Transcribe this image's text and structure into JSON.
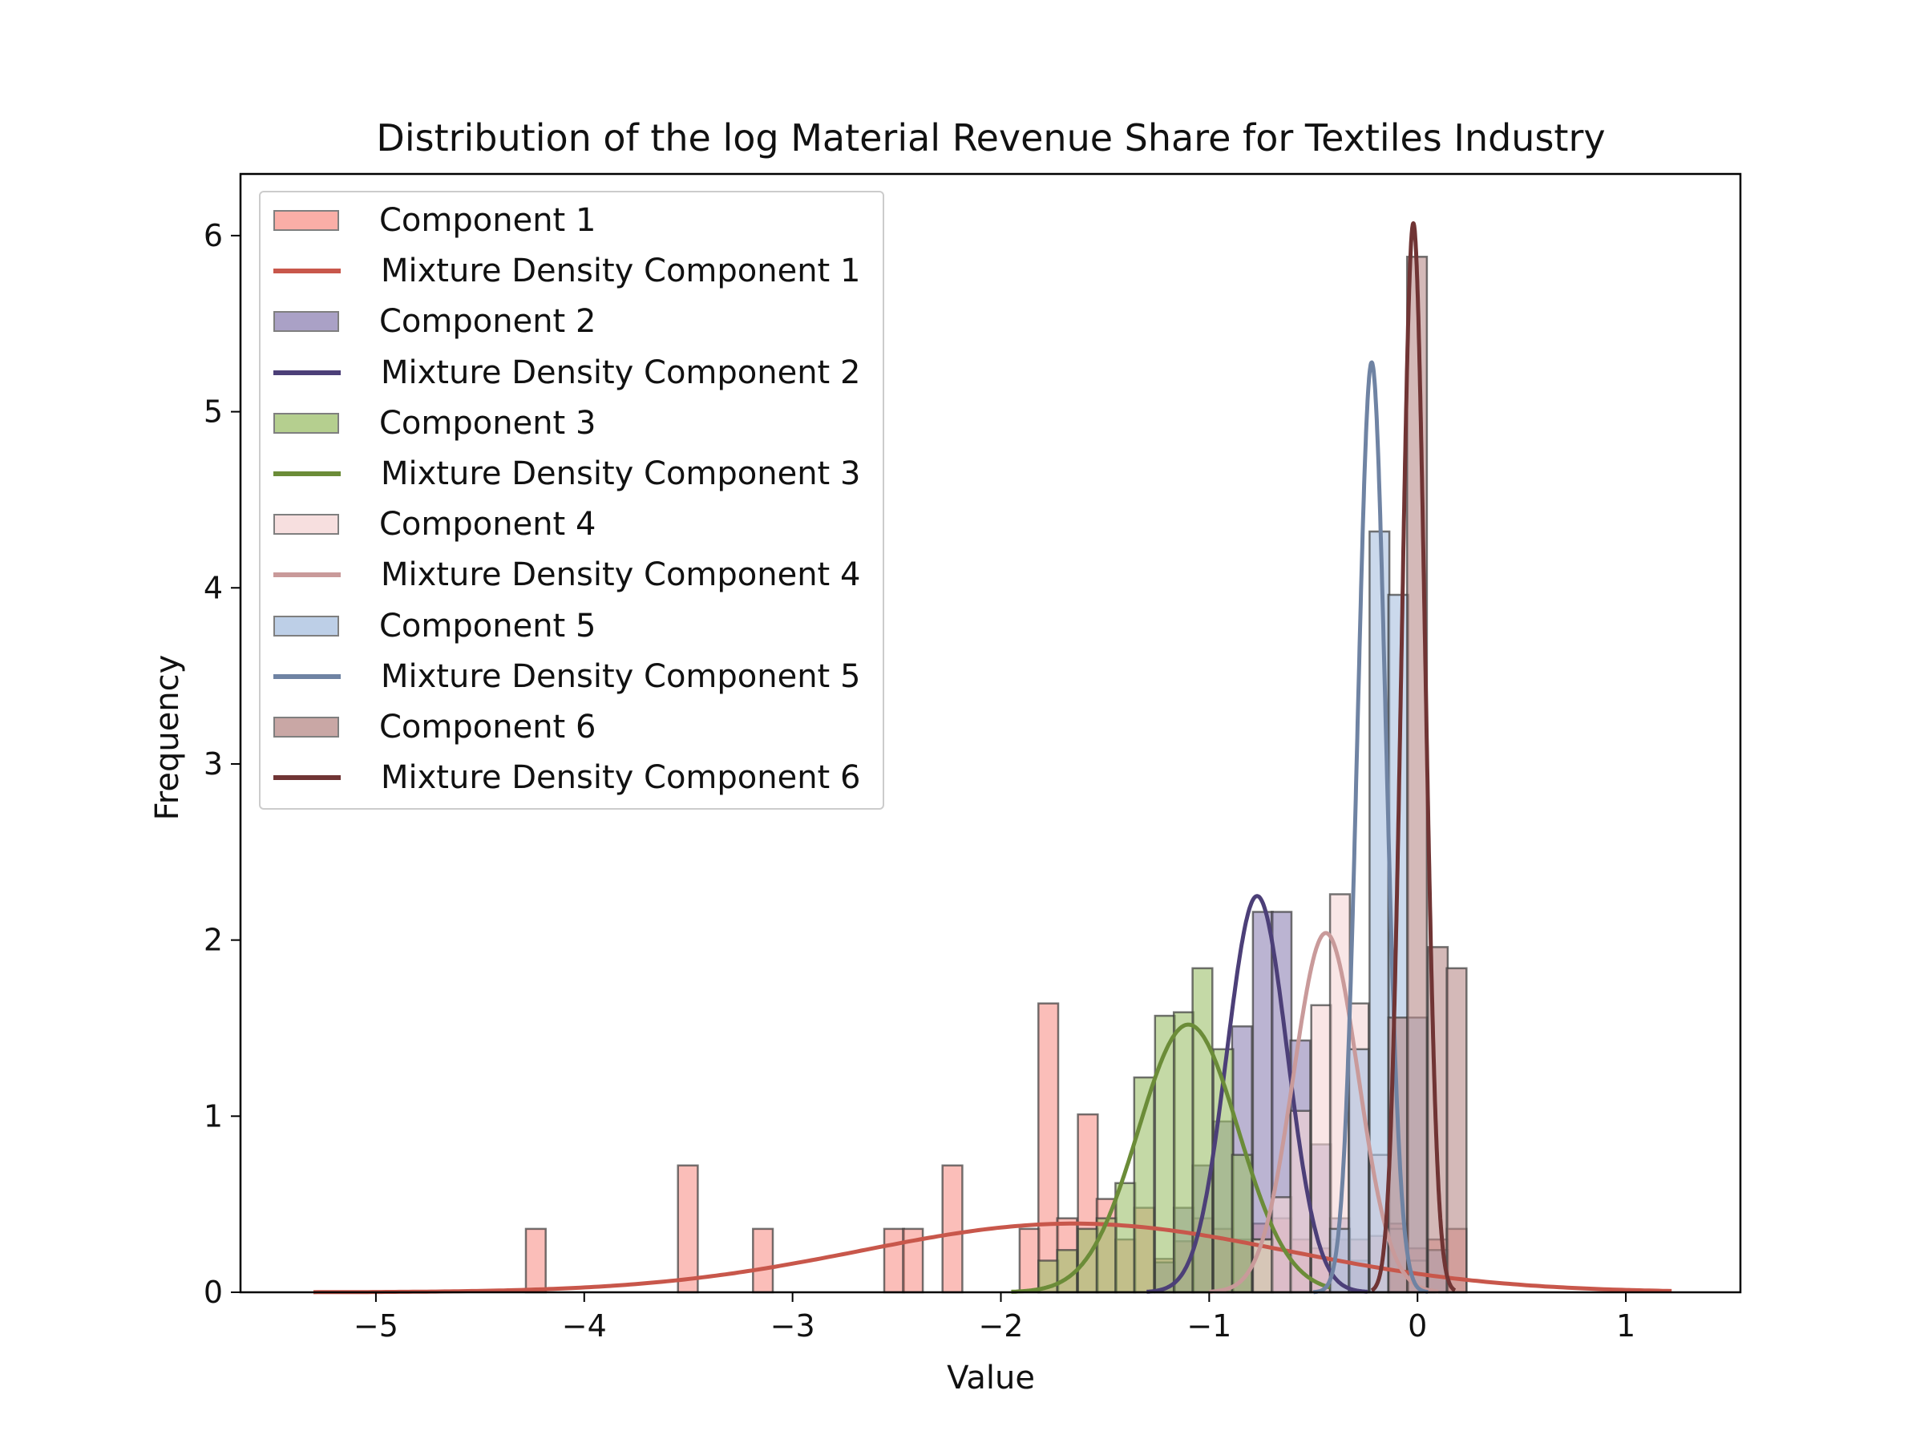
{
  "chart_data": {
    "type": "histogram_with_density",
    "title": "Distribution of the log Material Revenue Share for Textiles Industry",
    "xlabel": "Value",
    "ylabel": "Frequency",
    "xlim": [
      -5.65,
      1.55
    ],
    "ylim": [
      0,
      6.35
    ],
    "xticks": [
      -5,
      -4,
      -3,
      -2,
      -1,
      0,
      1
    ],
    "xtick_labels": [
      "−5",
      "−4",
      "−3",
      "−2",
      "−1",
      "0",
      "1"
    ],
    "yticks": [
      0,
      1,
      2,
      3,
      4,
      5,
      6
    ],
    "ytick_labels": [
      "0",
      "1",
      "2",
      "3",
      "4",
      "5",
      "6"
    ],
    "legend_position": "top-left",
    "grid": false,
    "components": [
      {
        "hist_label": "Component 1",
        "line_label": "Mixture Density Component 1",
        "fill_color": "#f9938a",
        "line_color": "#c8574b",
        "bin_width": 0.095,
        "bins": [
          [
            -4.28,
            0.36
          ],
          [
            -3.55,
            0.72
          ],
          [
            -3.19,
            0.36
          ],
          [
            -2.56,
            0.36
          ],
          [
            -2.47,
            0.36
          ],
          [
            -2.28,
            0.72
          ],
          [
            -1.91,
            0.36
          ],
          [
            -1.82,
            1.64
          ],
          [
            -1.73,
            0.42
          ],
          [
            -1.63,
            1.01
          ],
          [
            -1.54,
            0.53
          ],
          [
            -1.45,
            0.3
          ],
          [
            -1.36,
            0.48
          ],
          [
            -1.26,
            0.19
          ],
          [
            -1.17,
            0.29
          ],
          [
            -1.08,
            0.42
          ],
          [
            -0.98,
            0.36
          ],
          [
            -0.89,
            0.3
          ],
          [
            -0.79,
            0.39
          ],
          [
            -0.7,
            0.42
          ],
          [
            -0.61,
            0.3
          ],
          [
            -0.51,
            0.25
          ],
          [
            -0.42,
            0.3
          ],
          [
            -0.33,
            0.3
          ],
          [
            -0.23,
            0.32
          ],
          [
            -0.14,
            0.39
          ],
          [
            -0.05,
            0.25
          ],
          [
            0.05,
            0.3
          ],
          [
            0.14,
            0.36
          ]
        ],
        "density": {
          "mean": -1.65,
          "sd": 1.02,
          "peak": 0.39,
          "x_range": [
            -5.3,
            1.22
          ]
        }
      },
      {
        "hist_label": "Component 2",
        "line_label": "Mixture Density Component 2",
        "fill_color": "#8e82b4",
        "line_color": "#4c3f78",
        "bin_width": 0.095,
        "bins": [
          [
            -1.26,
            0.17
          ],
          [
            -1.17,
            0.48
          ],
          [
            -1.08,
            0.72
          ],
          [
            -0.98,
            0.97
          ],
          [
            -0.89,
            1.51
          ],
          [
            -0.79,
            2.16
          ],
          [
            -0.7,
            2.16
          ],
          [
            -0.61,
            1.43
          ],
          [
            -0.51,
            0.84
          ],
          [
            -0.42,
            0.42
          ],
          [
            -0.33,
            0.18
          ]
        ],
        "density": {
          "mean": -0.77,
          "sd": 0.145,
          "peak": 2.25,
          "x_range": [
            -1.3,
            -0.24
          ]
        }
      },
      {
        "hist_label": "Component 3",
        "line_label": "Mixture Density Component 3",
        "fill_color": "#9dbf6a",
        "line_color": "#6b8c38",
        "bin_width": 0.095,
        "bins": [
          [
            -1.82,
            0.18
          ],
          [
            -1.73,
            0.24
          ],
          [
            -1.63,
            0.36
          ],
          [
            -1.54,
            0.42
          ],
          [
            -1.45,
            0.62
          ],
          [
            -1.36,
            1.22
          ],
          [
            -1.26,
            1.57
          ],
          [
            -1.17,
            1.59
          ],
          [
            -1.08,
            1.84
          ],
          [
            -0.98,
            1.38
          ],
          [
            -0.89,
            0.78
          ],
          [
            -0.79,
            0.3
          ]
        ],
        "density": {
          "mean": -1.1,
          "sd": 0.24,
          "peak": 1.52,
          "x_range": [
            -1.95,
            -0.42
          ]
        }
      },
      {
        "hist_label": "Component 4",
        "line_label": "Mixture Density Component 4",
        "fill_color": "#f5d5d5",
        "line_color": "#c99a9a",
        "bin_width": 0.095,
        "bins": [
          [
            -0.79,
            0.3
          ],
          [
            -0.7,
            0.54
          ],
          [
            -0.61,
            1.03
          ],
          [
            -0.51,
            1.63
          ],
          [
            -0.42,
            2.26
          ],
          [
            -0.33,
            1.64
          ],
          [
            -0.23,
            0.78
          ],
          [
            -0.14,
            0.36
          ],
          [
            -0.05,
            0.18
          ]
        ],
        "density": {
          "mean": -0.44,
          "sd": 0.155,
          "peak": 2.04,
          "x_range": [
            -1.0,
            0.1
          ]
        }
      },
      {
        "hist_label": "Component 5",
        "line_label": "Mixture Density Component 5",
        "fill_color": "#a8bfe0",
        "line_color": "#6f83a3",
        "bin_width": 0.095,
        "bins": [
          [
            -0.42,
            0.36
          ],
          [
            -0.33,
            1.38
          ],
          [
            -0.23,
            4.32
          ],
          [
            -0.14,
            3.96
          ],
          [
            -0.05,
            1.56
          ],
          [
            0.05,
            0.24
          ]
        ],
        "density": {
          "mean": -0.22,
          "sd": 0.068,
          "peak": 5.28,
          "x_range": [
            -0.5,
            0.05
          ]
        }
      },
      {
        "hist_label": "Component 6",
        "line_label": "Mixture Density Component 6",
        "fill_color": "#b88a88",
        "line_color": "#703434",
        "bin_width": 0.095,
        "bins": [
          [
            -0.14,
            1.56
          ],
          [
            -0.05,
            5.88
          ],
          [
            0.05,
            1.96
          ],
          [
            0.14,
            1.84
          ]
        ],
        "density": {
          "mean": -0.02,
          "sd": 0.056,
          "peak": 6.07,
          "x_range": [
            -0.22,
            0.18
          ]
        }
      }
    ]
  }
}
